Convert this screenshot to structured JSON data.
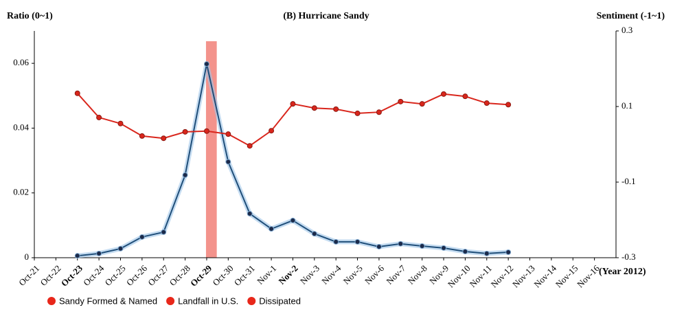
{
  "chart_data": {
    "type": "line",
    "title": "(B) Hurricane Sandy",
    "y_label": "Ratio (0~1)",
    "y2_label": "Sentiment (-1~1)",
    "x_label": "(Year 2012)",
    "categories": [
      "Oct-21",
      "Oct-22",
      "Oct-23",
      "Oct-24",
      "Oct-25",
      "Oct-26",
      "Oct-27",
      "Oct-28",
      "Oct-29",
      "Oct-30",
      "Oct-31",
      "Nov-1",
      "Nov-2",
      "Nov-3",
      "Nov-4",
      "Nov-5",
      "Nov-6",
      "Nov-7",
      "Nov-8",
      "Nov-9",
      "Nov-10",
      "Nov-11",
      "Nov-12",
      "Nov-13",
      "Nov-14",
      "Nov-15",
      "Nov-16"
    ],
    "series": [
      {
        "color": "#1f4e79",
        "axis": "y",
        "values": [
          null,
          null,
          0.0006,
          0.0013,
          0.0028,
          0.0064,
          0.0079,
          0.0255,
          0.0598,
          0.0296,
          0.0136,
          0.0089,
          0.0115,
          0.0074,
          0.0049,
          0.0049,
          0.0034,
          0.0043,
          0.0036,
          0.003,
          0.0019,
          0.0013,
          0.0017,
          null,
          null,
          null,
          null
        ]
      },
      {
        "color": "#d9261c",
        "axis": "y2",
        "values": [
          null,
          null,
          0.135,
          0.071,
          0.055,
          0.022,
          0.016,
          0.033,
          0.035,
          0.027,
          -0.004,
          0.036,
          0.107,
          0.096,
          0.093,
          0.082,
          0.085,
          0.113,
          0.107,
          0.133,
          0.127,
          0.109,
          0.105,
          null,
          null,
          null,
          null
        ]
      }
    ],
    "ylim": [
      0,
      0.07
    ],
    "yticks": [
      0,
      0.02,
      0.04,
      0.06
    ],
    "y2lim": [
      -0.3,
      0.3
    ],
    "y2ticks": [
      -0.3,
      -0.1,
      0.1,
      0.3
    ],
    "events": [
      {
        "category": "Oct-23",
        "label": "Sandy Formed & Named"
      },
      {
        "category": "Oct-29",
        "label": "Landfall in U.S."
      },
      {
        "category": "Nov-2",
        "label": "Dissipated"
      }
    ],
    "event_color": "#e8271a"
  }
}
